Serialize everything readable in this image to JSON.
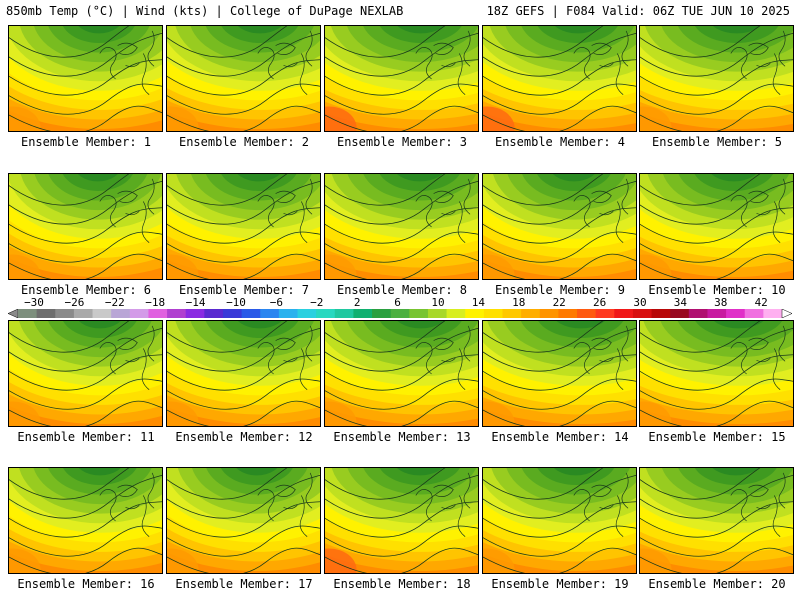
{
  "header": {
    "left": "850mb Temp (°C) | Wind (kts) | College of DuPage NEXLAB",
    "right": "18Z GEFS | F084 Valid: 06Z TUE JUN 10 2025"
  },
  "members": [
    {
      "label": "Ensemble Member: 1",
      "sw": 17,
      "ridge": 0.3
    },
    {
      "label": "Ensemble Member: 2",
      "sw": 18,
      "ridge": 0.45
    },
    {
      "label": "Ensemble Member: 3",
      "sw": 20,
      "ridge": 0.6
    },
    {
      "label": "Ensemble Member: 4",
      "sw": 21,
      "ridge": 0.55
    },
    {
      "label": "Ensemble Member: 5",
      "sw": 18,
      "ridge": 0.65
    },
    {
      "label": "Ensemble Member: 6",
      "sw": 17,
      "ridge": 0.25
    },
    {
      "label": "Ensemble Member: 7",
      "sw": 19,
      "ridge": 0.4
    },
    {
      "label": "Ensemble Member: 8",
      "sw": 18,
      "ridge": 0.55
    },
    {
      "label": "Ensemble Member: 9",
      "sw": 19,
      "ridge": 0.35
    },
    {
      "label": "Ensemble Member: 10",
      "sw": 18,
      "ridge": 0.5
    },
    {
      "label": "Ensemble Member: 11",
      "sw": 18,
      "ridge": 0.35
    },
    {
      "label": "Ensemble Member: 12",
      "sw": 19,
      "ridge": 0.45
    },
    {
      "label": "Ensemble Member: 13",
      "sw": 17,
      "ridge": 0.6
    },
    {
      "label": "Ensemble Member: 14",
      "sw": 18,
      "ridge": 0.7
    },
    {
      "label": "Ensemble Member: 15",
      "sw": 17,
      "ridge": 0.75
    },
    {
      "label": "Ensemble Member: 16",
      "sw": 18,
      "ridge": 0.35
    },
    {
      "label": "Ensemble Member: 17",
      "sw": 18,
      "ridge": 0.3
    },
    {
      "label": "Ensemble Member: 18",
      "sw": 20,
      "ridge": 0.55
    },
    {
      "label": "Ensemble Member: 19",
      "sw": 18,
      "ridge": 0.45
    },
    {
      "label": "Ensemble Member: 20",
      "sw": 18,
      "ridge": 0.6
    }
  ],
  "colorbar": {
    "labels": [
      "−30",
      "−26",
      "−22",
      "−18",
      "−14",
      "−10",
      "−6",
      "−2",
      "2",
      "6",
      "10",
      "14",
      "18",
      "22",
      "26",
      "30",
      "34",
      "38",
      "42"
    ],
    "colors": [
      "#7d8f7d",
      "#6e6e6e",
      "#8a8a8a",
      "#a9a9a9",
      "#c9c9c9",
      "#b9a6d6",
      "#d39be8",
      "#e060e0",
      "#b040d0",
      "#8a2be2",
      "#5a2ad0",
      "#3a3ad8",
      "#2a5ae8",
      "#2a86f0",
      "#2ab2ee",
      "#2ad0e0",
      "#28d8c0",
      "#20c8a0",
      "#10b070",
      "#2aa040",
      "#4cb040",
      "#78c430",
      "#a8d828",
      "#d8ee20",
      "#fff200",
      "#ffe000",
      "#ffc800",
      "#ffae00",
      "#ff9400",
      "#ff7a00",
      "#ff5a10",
      "#ff3a20",
      "#f01818",
      "#d81010",
      "#b80808",
      "#980820",
      "#b01070",
      "#c81aa0",
      "#e030c8",
      "#f070e0",
      "#ffb0f0"
    ]
  }
}
